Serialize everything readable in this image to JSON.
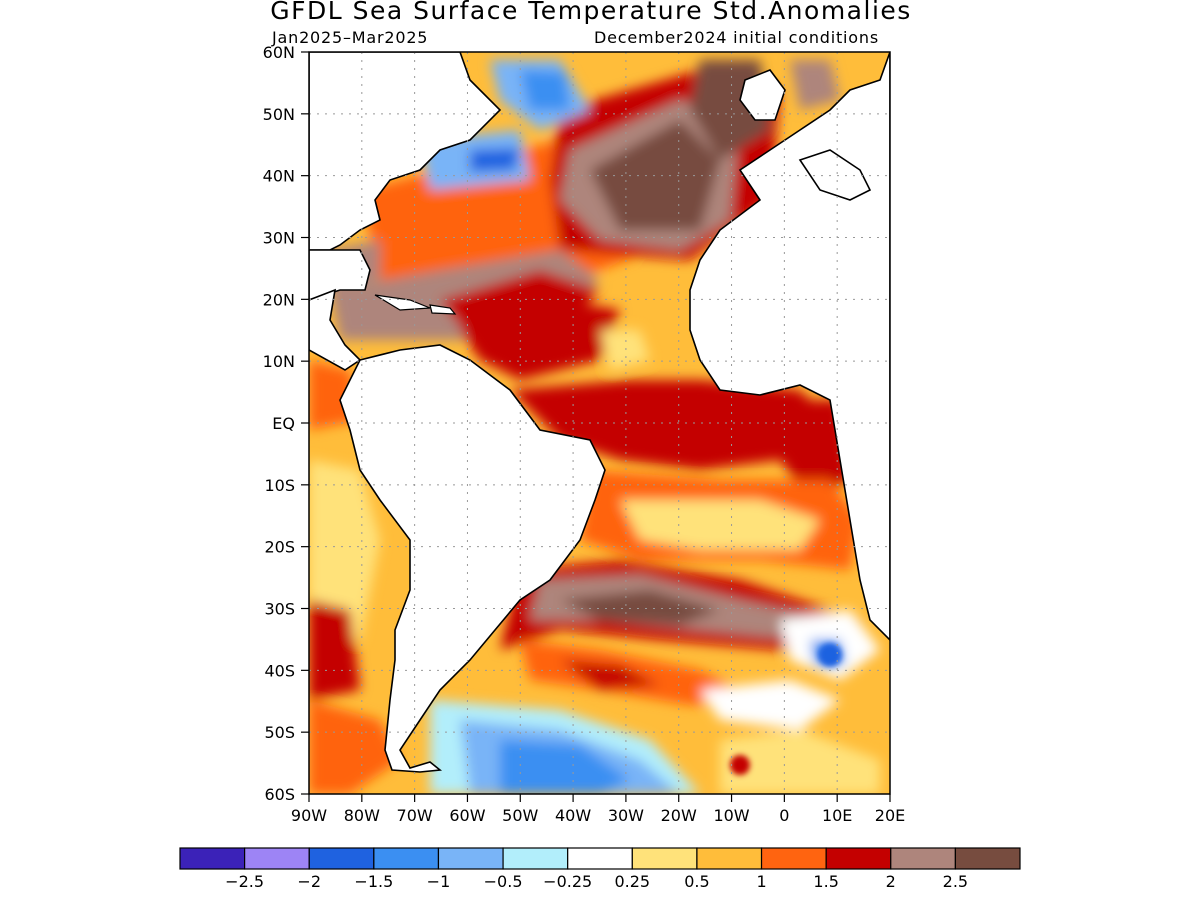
{
  "title": "GFDL Sea Surface Temperature Std.Anomalies",
  "subtitle_left": "Jan2025–Mar2025",
  "subtitle_right": "December2024 initial conditions",
  "map": {
    "region": "Atlantic Ocean",
    "lat_labels": [
      "60N",
      "50N",
      "40N",
      "30N",
      "20N",
      "10N",
      "EQ",
      "10S",
      "20S",
      "30S",
      "40S",
      "50S",
      "60S"
    ],
    "lon_labels": [
      "90W",
      "80W",
      "70W",
      "60W",
      "50W",
      "40W",
      "30W",
      "20W",
      "10W",
      "0",
      "10E",
      "20E"
    ],
    "grid": "dotted"
  },
  "colorbar": {
    "colors": [
      "#3b22b8",
      "#9d84f5",
      "#1f62e0",
      "#3b8ff2",
      "#79b4f7",
      "#b2eefb",
      "#ffffff",
      "#ffe27a",
      "#ffbd3a",
      "#ff6410",
      "#c40000",
      "#ae857c",
      "#774c3f"
    ],
    "labels": [
      "−2.5",
      "−2",
      "−1.5",
      "−1",
      "−0.5",
      "−0.25",
      "0.25",
      "0.5",
      "1",
      "1.5",
      "2",
      "2.5"
    ]
  }
}
